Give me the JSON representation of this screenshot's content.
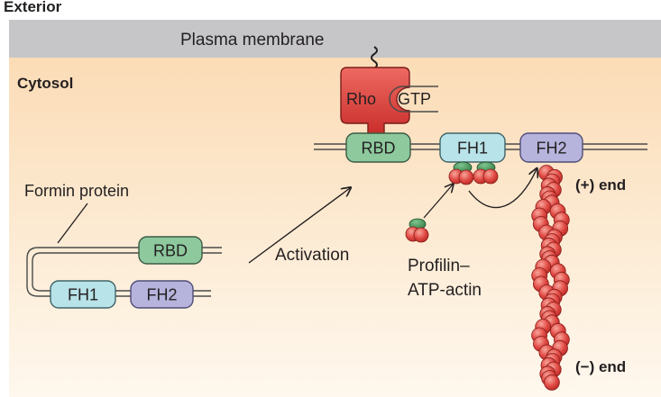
{
  "regions": {
    "exterior": "Exterior",
    "membrane": "Plasma membrane",
    "cytosol": "Cytosol"
  },
  "inactive_formin": {
    "title": "Formin protein",
    "domains": {
      "rbd": "RBD",
      "fh1": "FH1",
      "fh2": "FH2"
    }
  },
  "activation_label": "Activation",
  "active_formin": {
    "domains": {
      "rbd": "RBD",
      "fh1": "FH1",
      "fh2": "FH2"
    }
  },
  "rho": {
    "label": "Rho",
    "nucleotide": "GTP"
  },
  "profilin_label": {
    "line1": "Profilin–",
    "line2": "ATP-actin"
  },
  "filament": {
    "plus_end": "(+) end",
    "minus_end": "(−) end"
  },
  "colors": {
    "membrane": "#c6c6c8",
    "cytosol_top": "#fce2c0",
    "cytosol_bottom": "#fef6ea",
    "rbd": "#8dc99d",
    "fh1": "#b8e3e8",
    "fh2": "#b6b4dd",
    "rho": "#e0443f",
    "actin": "#e4504a",
    "profilin": "#3e8d50"
  }
}
